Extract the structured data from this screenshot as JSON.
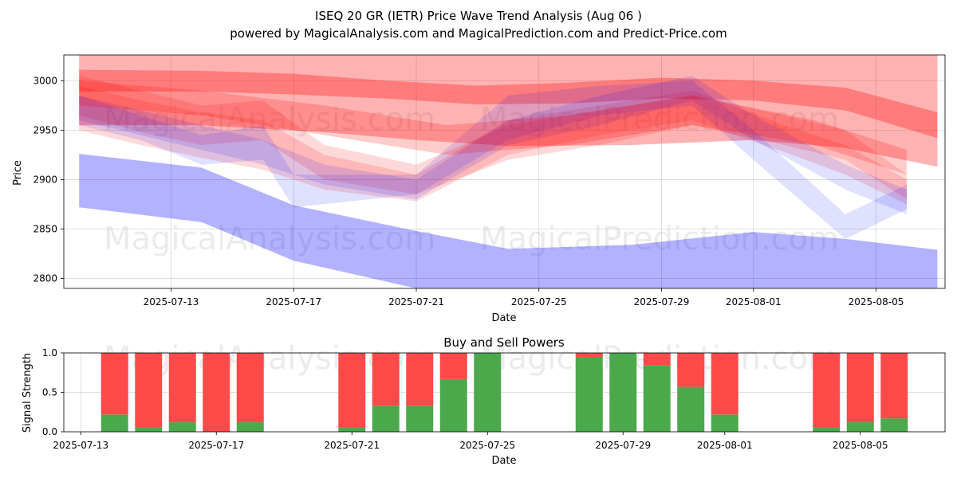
{
  "title_line1": "ISEQ 20 GR (IETR) Price Wave Trend Analysis (Aug 06 )",
  "title_line2": "powered by MagicalAnalysis.com and MagicalPrediction.com and Predict-Price.com",
  "watermarks": [
    "MagicalAnalysis.com",
    "MagicalPrediction.com"
  ],
  "colors": {
    "sell": "#ff4a4a",
    "buy": "#4ba84b",
    "red_band": "#ff0000",
    "blue_band": "#0000ff",
    "grid": "#b0b0b0"
  },
  "chart_data": [
    {
      "type": "area",
      "title": "",
      "xlabel": "Date",
      "ylabel": "Price",
      "x_ticks": [
        "2025-07-13",
        "2025-07-17",
        "2025-07-21",
        "2025-07-25",
        "2025-07-29",
        "2025-08-01",
        "2025-08-05"
      ],
      "y_ticks": [
        2800,
        2850,
        2900,
        2950,
        3000
      ],
      "xlim": [
        "2025-07-09T12:00",
        "2025-08-07T06:00"
      ],
      "ylim": [
        2790,
        3026
      ],
      "grid": true,
      "series": [
        {
          "color": "blue",
          "opacity": 0.3,
          "x": [
            "2025-07-10",
            "2025-07-14",
            "2025-07-17",
            "2025-07-21",
            "2025-07-24",
            "2025-07-28",
            "2025-08-01",
            "2025-08-04",
            "2025-08-07"
          ],
          "lower": [
            2872,
            2857,
            2818,
            2790,
            2782,
            2783,
            2790,
            2786,
            2772
          ],
          "upper": [
            2926,
            2912,
            2874,
            2848,
            2830,
            2834,
            2847,
            2840,
            2829
          ]
        },
        {
          "color": "red",
          "opacity": 0.3,
          "x": [
            "2025-07-10",
            "2025-07-14",
            "2025-07-18",
            "2025-07-21",
            "2025-07-24",
            "2025-07-28",
            "2025-08-01",
            "2025-08-04",
            "2025-08-07"
          ],
          "lower": [
            2955,
            2955,
            2948,
            2940,
            2934,
            2935,
            2940,
            2932,
            2913
          ],
          "upper": [
            3026,
            3026,
            3026,
            3026,
            3026,
            3026,
            3026,
            3026,
            3026
          ]
        },
        {
          "color": "red",
          "opacity": 0.3,
          "x": [
            "2025-07-10",
            "2025-07-14",
            "2025-07-17",
            "2025-07-20",
            "2025-07-23",
            "2025-07-26",
            "2025-07-29",
            "2025-08-01",
            "2025-08-04",
            "2025-08-07"
          ],
          "lower": [
            2989,
            2989,
            2986,
            2982,
            2976,
            2977,
            2982,
            2980,
            2970,
            2942
          ],
          "upper": [
            3011,
            3010,
            3007,
            3000,
            2995,
            2998,
            3003,
            3000,
            2993,
            2968
          ]
        },
        {
          "color": "red",
          "opacity": 0.15,
          "x": [
            "2025-07-10",
            "2025-07-12",
            "2025-07-14",
            "2025-07-16",
            "2025-07-18",
            "2025-07-21",
            "2025-07-24",
            "2025-07-27",
            "2025-07-30",
            "2025-08-02",
            "2025-08-04",
            "2025-08-06"
          ],
          "lower": [
            2965,
            2948,
            2935,
            2940,
            2900,
            2885,
            2920,
            2935,
            2955,
            2935,
            2920,
            2880
          ],
          "upper": [
            3005,
            2990,
            2975,
            2980,
            2935,
            2915,
            2955,
            2970,
            2985,
            2965,
            2950,
            2905
          ]
        },
        {
          "color": "red",
          "opacity": 0.15,
          "x": [
            "2025-07-10",
            "2025-07-12",
            "2025-07-14",
            "2025-07-16",
            "2025-07-18",
            "2025-07-21",
            "2025-07-24",
            "2025-07-27",
            "2025-07-30",
            "2025-08-02",
            "2025-08-04",
            "2025-08-06"
          ],
          "lower": [
            2950,
            2935,
            2922,
            2910,
            2890,
            2878,
            2925,
            2945,
            2960,
            2928,
            2905,
            2875
          ],
          "upper": [
            2995,
            2980,
            2968,
            2960,
            2925,
            2905,
            2960,
            2975,
            2990,
            2955,
            2935,
            2900
          ]
        },
        {
          "color": "blue",
          "opacity": 0.12,
          "x": [
            "2025-07-10",
            "2025-07-12",
            "2025-07-14",
            "2025-07-16",
            "2025-07-17",
            "2025-07-21",
            "2025-07-24",
            "2025-07-27",
            "2025-07-30",
            "2025-08-01",
            "2025-08-04",
            "2025-08-06"
          ],
          "lower": [
            2955,
            2940,
            2915,
            2920,
            2872,
            2885,
            2940,
            2965,
            2975,
            2920,
            2840,
            2870
          ],
          "upper": [
            2985,
            2965,
            2945,
            2955,
            2905,
            2905,
            2985,
            2995,
            3000,
            2950,
            2865,
            2895
          ]
        },
        {
          "color": "blue",
          "opacity": 0.12,
          "x": [
            "2025-07-10",
            "2025-07-12",
            "2025-07-14",
            "2025-07-16",
            "2025-07-18",
            "2025-07-21",
            "2025-07-24",
            "2025-07-27",
            "2025-07-30",
            "2025-08-01",
            "2025-08-04",
            "2025-08-06"
          ],
          "lower": [
            2960,
            2945,
            2930,
            2915,
            2895,
            2880,
            2935,
            2955,
            2980,
            2940,
            2890,
            2865
          ],
          "upper": [
            2985,
            2970,
            2955,
            2940,
            2915,
            2900,
            2960,
            2985,
            3005,
            2965,
            2915,
            2890
          ]
        },
        {
          "color": "red",
          "opacity": 0.2,
          "x": [
            "2025-07-10",
            "2025-07-14",
            "2025-07-18",
            "2025-07-22",
            "2025-07-26",
            "2025-07-30",
            "2025-08-03",
            "2025-08-06"
          ],
          "lower": [
            2975,
            2965,
            2945,
            2925,
            2935,
            2955,
            2935,
            2905
          ],
          "upper": [
            3000,
            2990,
            2975,
            2955,
            2965,
            2985,
            2960,
            2930
          ]
        }
      ]
    },
    {
      "type": "bar",
      "title": "Buy and Sell Powers",
      "xlabel": "Date",
      "ylabel": "Signal Strength",
      "x_ticks": [
        "2025-07-13",
        "2025-07-17",
        "2025-07-21",
        "2025-07-25",
        "2025-07-29",
        "2025-08-01",
        "2025-08-05"
      ],
      "y_ticks": [
        0.0,
        0.5,
        1.0
      ],
      "ylim": [
        0,
        1.0
      ],
      "grid": true,
      "series": [
        {
          "name": "Buy",
          "values": [
            0.22,
            0.06,
            0.12,
            0.01,
            0.12,
            0.06,
            0.33,
            0.33,
            0.67,
            1.0,
            0.95,
            1.0,
            0.84,
            0.57,
            0.22,
            0.06,
            0.12,
            0.17
          ]
        },
        {
          "name": "Sell",
          "values": [
            0.78,
            0.94,
            0.88,
            0.99,
            0.88,
            0.94,
            0.67,
            0.67,
            0.33,
            0.0,
            0.05,
            0.0,
            0.16,
            0.43,
            0.78,
            0.94,
            0.88,
            0.83
          ]
        }
      ],
      "categories": [
        "2025-07-14",
        "2025-07-15",
        "2025-07-16",
        "2025-07-17",
        "2025-07-18",
        "2025-07-21",
        "2025-07-22",
        "2025-07-23",
        "2025-07-24",
        "2025-07-25",
        "2025-07-28",
        "2025-07-29",
        "2025-07-30",
        "2025-07-31",
        "2025-08-01",
        "2025-08-04",
        "2025-08-05",
        "2025-08-06"
      ]
    }
  ]
}
